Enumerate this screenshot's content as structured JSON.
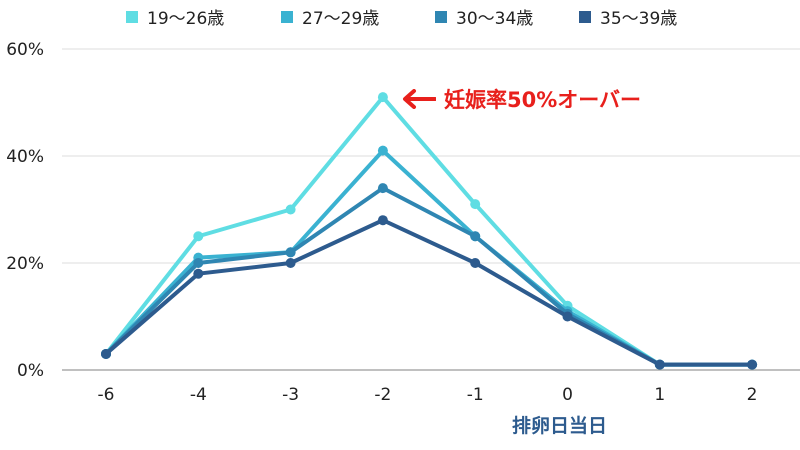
{
  "chart_data": {
    "type": "line",
    "categories": [
      "-6",
      "-4",
      "-3",
      "-2",
      "-1",
      "0",
      "1",
      "2"
    ],
    "series": [
      {
        "name": "19〜26歳",
        "color": "#5fdde3",
        "values": [
          3,
          25,
          30,
          51,
          31,
          12,
          1,
          1
        ]
      },
      {
        "name": "27〜29歳",
        "color": "#3ab2d1",
        "values": [
          3,
          21,
          22,
          41,
          25,
          11,
          1,
          1
        ]
      },
      {
        "name": "30〜34歳",
        "color": "#2f86b2",
        "values": [
          3,
          20,
          22,
          34,
          25,
          10.5,
          1,
          1
        ]
      },
      {
        "name": "35〜39歳",
        "color": "#2d5b8e",
        "values": [
          3,
          18,
          20,
          28,
          20,
          10,
          1,
          1
        ]
      }
    ],
    "ylim": [
      0,
      60
    ],
    "yticks": [
      0,
      20,
      40,
      60
    ],
    "ytick_labels": [
      "0%",
      "20%",
      "40%",
      "60%"
    ],
    "xlabel": "排卵日当日",
    "ylabel": "",
    "grid": "horizontal",
    "legend": "top",
    "annotation": {
      "text": "妊娠率50%オーバー",
      "color": "#e8201c"
    }
  }
}
